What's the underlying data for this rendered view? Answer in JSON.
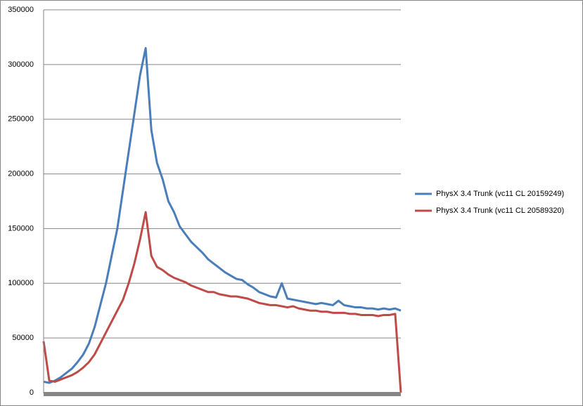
{
  "chart_data": {
    "type": "line",
    "series": [
      {
        "name": "PhysX 3.4 Trunk (vc11 CL 20159249)",
        "color": "#4a7ebb",
        "values": [
          10000,
          9000,
          11000,
          14000,
          18000,
          22000,
          28000,
          35000,
          45000,
          60000,
          80000,
          100000,
          125000,
          150000,
          185000,
          220000,
          255000,
          290000,
          315000,
          240000,
          210000,
          195000,
          175000,
          165000,
          152000,
          145000,
          138000,
          133000,
          128000,
          122000,
          118000,
          114000,
          110000,
          107000,
          104000,
          103000,
          99000,
          96000,
          92000,
          90000,
          88000,
          87000,
          100000,
          86000,
          85000,
          84000,
          83000,
          82000,
          81000,
          82000,
          81000,
          80000,
          84000,
          80000,
          79000,
          78000,
          78000,
          77000,
          77000,
          76000,
          77000,
          76000,
          77000,
          75000
        ]
      },
      {
        "name": "PhysX 3.4 Trunk (vc11 CL 20589320)",
        "color": "#be4b48",
        "values": [
          47000,
          11000,
          10000,
          12000,
          14000,
          16000,
          19000,
          23000,
          28000,
          35000,
          45000,
          55000,
          65000,
          75000,
          85000,
          100000,
          118000,
          140000,
          165000,
          125000,
          115000,
          112000,
          108000,
          105000,
          103000,
          101000,
          98000,
          96000,
          94000,
          92000,
          92000,
          90000,
          89000,
          88000,
          88000,
          87000,
          86000,
          84000,
          82000,
          81000,
          80000,
          80000,
          79000,
          78000,
          79000,
          77000,
          76000,
          75000,
          75000,
          74000,
          74000,
          73000,
          73000,
          73000,
          72000,
          72000,
          71000,
          71000,
          71000,
          70000,
          71000,
          71000,
          72000,
          0
        ]
      }
    ],
    "ylim": [
      0,
      350000
    ],
    "yticks": [
      0,
      50000,
      100000,
      150000,
      200000,
      250000,
      300000,
      350000
    ],
    "grid": true,
    "legend": "right"
  }
}
